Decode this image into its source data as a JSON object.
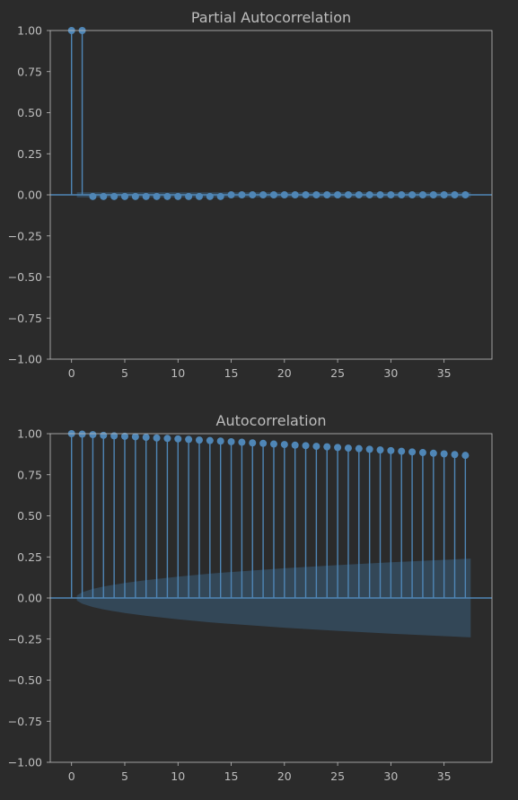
{
  "colors": {
    "background": "#2b2b2b",
    "axes_frame": "#bdbdbd",
    "text": "#bdbdbd",
    "series": "#4f86b6",
    "confidence_band": "#34495a"
  },
  "chart_data": [
    {
      "type": "stem",
      "title": "Partial Autocorrelation",
      "xlabel": "",
      "ylabel": "",
      "xlim": [
        -2,
        39.5
      ],
      "ylim": [
        -1.0,
        1.0
      ],
      "xticks": [
        0,
        5,
        10,
        15,
        20,
        25,
        30,
        35
      ],
      "yticks": [
        -1.0,
        -0.75,
        -0.5,
        -0.25,
        0.0,
        0.25,
        0.5,
        0.75,
        1.0
      ],
      "ytick_labels": [
        "−1.00",
        "−0.75",
        "−0.50",
        "−0.25",
        "0.00",
        "0.25",
        "0.50",
        "0.75",
        "1.00"
      ],
      "grid": false,
      "lags": [
        0,
        1,
        2,
        3,
        4,
        5,
        6,
        7,
        8,
        9,
        10,
        11,
        12,
        13,
        14,
        15,
        16,
        17,
        18,
        19,
        20,
        21,
        22,
        23,
        24,
        25,
        26,
        27,
        28,
        29,
        30,
        31,
        32,
        33,
        34,
        35,
        36,
        37
      ],
      "values": [
        1.0,
        1.0,
        -0.01,
        -0.01,
        -0.01,
        -0.01,
        -0.01,
        -0.01,
        -0.01,
        -0.01,
        -0.01,
        -0.01,
        -0.01,
        -0.01,
        -0.01,
        0.0,
        0.0,
        0.0,
        0.0,
        0.0,
        0.0,
        0.0,
        0.0,
        0.0,
        0.0,
        0.0,
        0.0,
        0.0,
        0.0,
        0.0,
        0.0,
        0.0,
        0.0,
        0.0,
        0.0,
        0.0,
        0.0,
        0.0
      ],
      "confidence_band": {
        "lags": [
          0.5,
          37.5
        ],
        "upper": [
          0.016,
          0.016
        ],
        "lower": [
          -0.016,
          -0.016
        ]
      }
    },
    {
      "type": "stem",
      "title": "Autocorrelation",
      "xlabel": "",
      "ylabel": "",
      "xlim": [
        -2,
        39.5
      ],
      "ylim": [
        -1.0,
        1.0
      ],
      "xticks": [
        0,
        5,
        10,
        15,
        20,
        25,
        30,
        35
      ],
      "yticks": [
        -1.0,
        -0.75,
        -0.5,
        -0.25,
        0.0,
        0.25,
        0.5,
        0.75,
        1.0
      ],
      "ytick_labels": [
        "−1.00",
        "−0.75",
        "−0.50",
        "−0.25",
        "0.00",
        "0.25",
        "0.50",
        "0.75",
        "1.00"
      ],
      "grid": false,
      "lags": [
        0,
        1,
        2,
        3,
        4,
        5,
        6,
        7,
        8,
        9,
        10,
        11,
        12,
        13,
        14,
        15,
        16,
        17,
        18,
        19,
        20,
        21,
        22,
        23,
        24,
        25,
        26,
        27,
        28,
        29,
        30,
        31,
        32,
        33,
        34,
        35,
        36,
        37
      ],
      "values": [
        1.0,
        0.997,
        0.994,
        0.99,
        0.987,
        0.984,
        0.981,
        0.978,
        0.974,
        0.971,
        0.968,
        0.965,
        0.961,
        0.958,
        0.955,
        0.951,
        0.948,
        0.944,
        0.941,
        0.937,
        0.934,
        0.93,
        0.927,
        0.923,
        0.92,
        0.916,
        0.912,
        0.909,
        0.905,
        0.901,
        0.897,
        0.893,
        0.889,
        0.885,
        0.881,
        0.877,
        0.873,
        0.868
      ],
      "confidence_band": {
        "lags": [
          0.5,
          1,
          2,
          3,
          5,
          7,
          10,
          13,
          16,
          20,
          25,
          30,
          35,
          37.5
        ],
        "upper": [
          0.016,
          0.035,
          0.055,
          0.07,
          0.092,
          0.109,
          0.13,
          0.148,
          0.163,
          0.181,
          0.2,
          0.217,
          0.232,
          0.24
        ],
        "lower": [
          -0.016,
          -0.035,
          -0.055,
          -0.07,
          -0.092,
          -0.109,
          -0.13,
          -0.148,
          -0.163,
          -0.181,
          -0.2,
          -0.217,
          -0.232,
          -0.24
        ]
      }
    }
  ]
}
